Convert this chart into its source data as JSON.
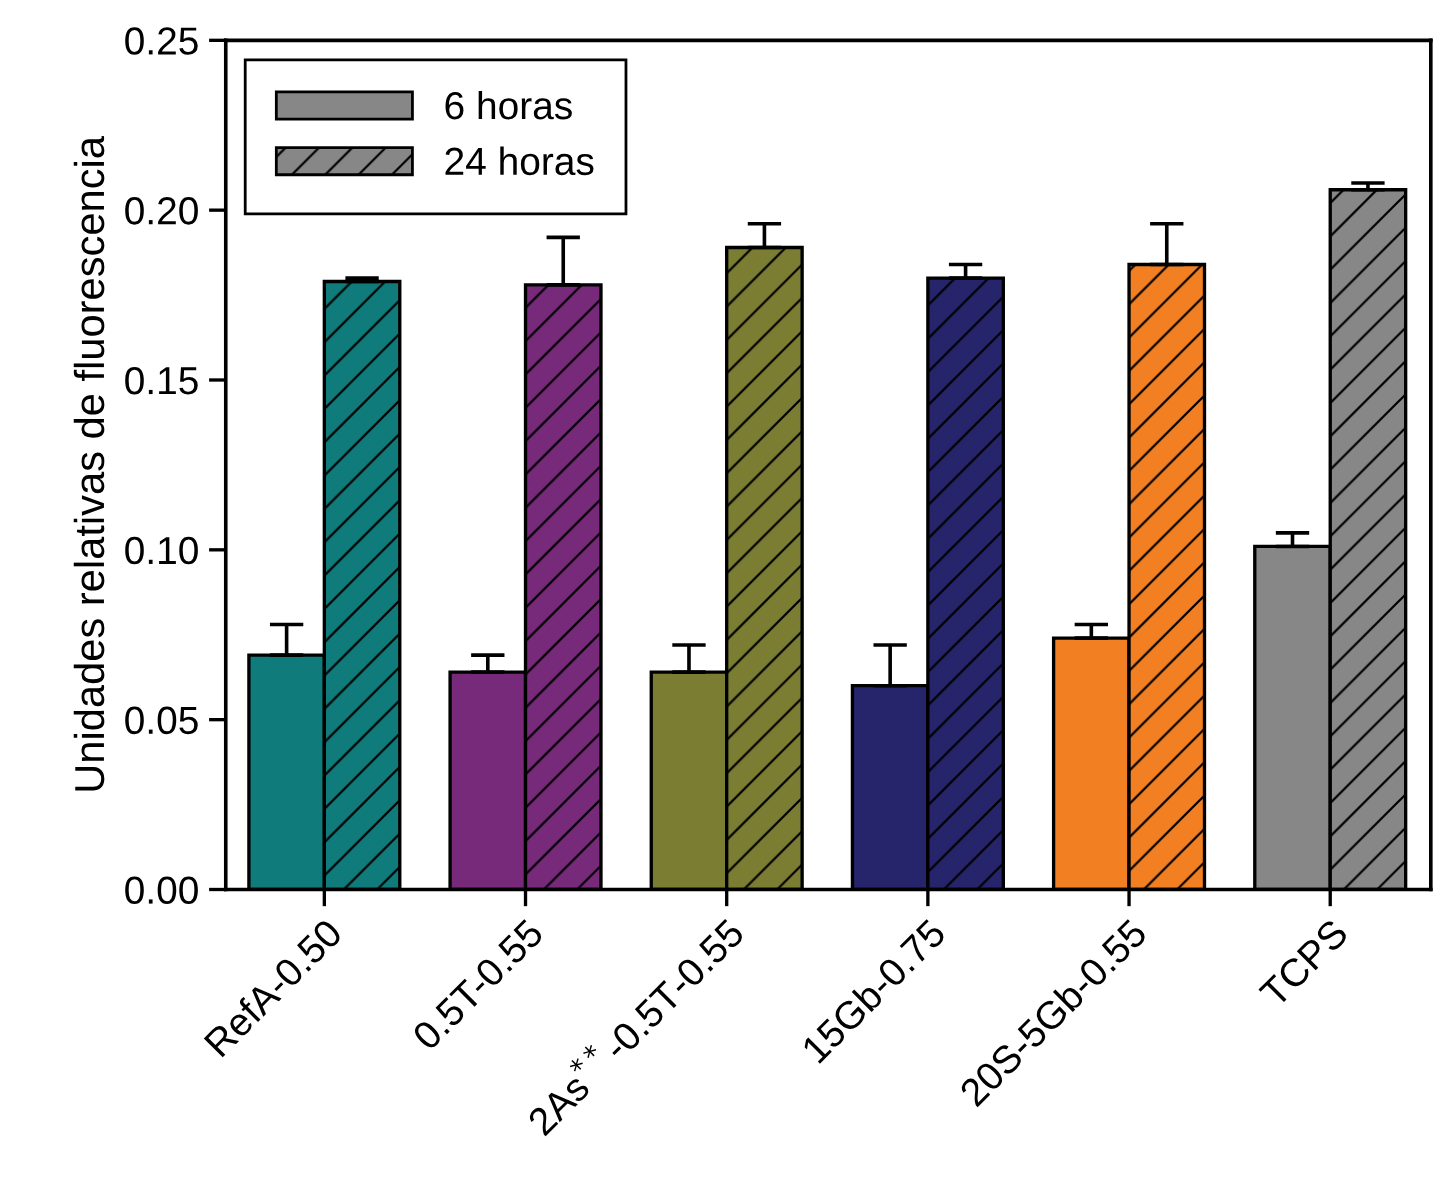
{
  "chart_data": {
    "type": "bar",
    "ylabel": "Unidades relativas de fluorescencia",
    "categories": [
      "RefA-0.50",
      "0.5T-0.55",
      "2As$^{**}$-0.5T-0.55",
      "15Gb-0.75",
      "20S-5Gb-0.55",
      "TCPS"
    ],
    "series": [
      {
        "name": "6 horas",
        "color": "#878787",
        "colors": [
          "#0f7b7b",
          "#772a7a",
          "#7b7d33",
          "#26246a",
          "#f28022",
          "#878787"
        ],
        "values": [
          0.069,
          0.064,
          0.064,
          0.06,
          0.074,
          0.101
        ],
        "errors": [
          [
            0.069,
            0.078
          ],
          [
            0.064,
            0.069
          ],
          [
            0.064,
            0.072
          ],
          [
            0.06,
            0.072
          ],
          [
            0.074,
            0.078
          ],
          [
            0.101,
            0.105
          ]
        ]
      },
      {
        "name": "24 horas",
        "color": "#878787",
        "colors": [
          "#0f7b7b",
          "#772a7a",
          "#7b7d33",
          "#26246a",
          "#f28022",
          "#878787"
        ],
        "values": [
          0.179,
          0.178,
          0.189,
          0.18,
          0.184,
          0.206
        ],
        "errors": [
          [
            0.179,
            0.18
          ],
          [
            0.178,
            0.192
          ],
          [
            0.189,
            0.196
          ],
          [
            0.18,
            0.184
          ],
          [
            0.184,
            0.196
          ],
          [
            0.206,
            0.208
          ]
        ]
      }
    ],
    "ylim": [
      0,
      0.25
    ],
    "yticks": [
      {
        "value": 0,
        "label": "0.00"
      },
      {
        "value": 0.05,
        "label": "0.05"
      },
      {
        "value": 0.1,
        "label": "0.10"
      },
      {
        "value": 0.15,
        "label": "0.15"
      },
      {
        "value": 0.2,
        "label": "0.20"
      },
      {
        "value": 0.25,
        "label": "0.25"
      }
    ],
    "legend": "top left",
    "grid": false
  }
}
